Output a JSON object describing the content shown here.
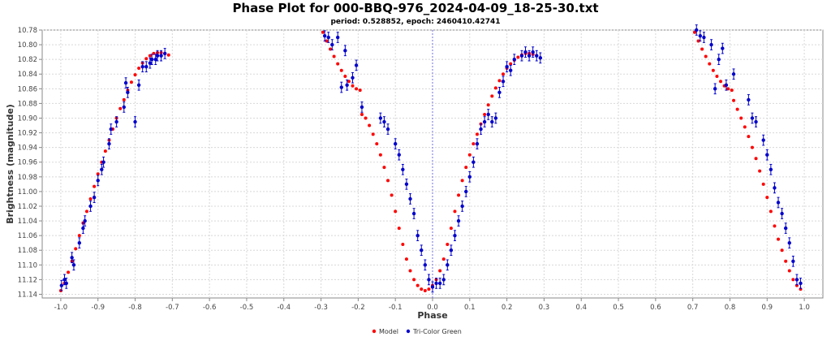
{
  "chart_data": {
    "type": "scatter",
    "title": "Phase Plot for 000-BBQ-976_2024-04-09_18-25-30.txt",
    "subtitle": "period: 0.528852, epoch: 2460410.42741",
    "xlabel": "Phase",
    "ylabel": "Brightness (magnitude)",
    "xlim": [
      -1.05,
      1.05
    ],
    "ylim": [
      10.78,
      11.145
    ],
    "y_inverted": true,
    "x_ticks": [
      "-1.0",
      "-0.9",
      "-0.8",
      "-0.7",
      "-0.6",
      "-0.5",
      "-0.4",
      "-0.3",
      "-0.2",
      "-0.1",
      "0.0",
      "0.1",
      "0.2",
      "0.3",
      "0.4",
      "0.5",
      "0.6",
      "0.7",
      "0.8",
      "0.9",
      "1.0"
    ],
    "y_ticks": [
      "10.78",
      "10.80",
      "10.82",
      "10.84",
      "10.86",
      "10.88",
      "10.90",
      "10.92",
      "10.94",
      "10.96",
      "10.98",
      "11.00",
      "11.02",
      "11.04",
      "11.06",
      "11.08",
      "11.10",
      "11.12",
      "11.14"
    ],
    "grid": true,
    "legend_position": "bottom-center",
    "series": [
      {
        "name": "Model",
        "color": "#ff0000",
        "x": [
          -1.0,
          -0.99,
          -0.98,
          -0.97,
          -0.96,
          -0.95,
          -0.94,
          -0.93,
          -0.92,
          -0.91,
          -0.9,
          -0.89,
          -0.88,
          -0.87,
          -0.86,
          -0.85,
          -0.84,
          -0.83,
          -0.82,
          -0.81,
          -0.8,
          -0.79,
          -0.78,
          -0.77,
          -0.76,
          -0.75,
          -0.74,
          -0.73,
          -0.72,
          -0.71,
          -0.295,
          -0.285,
          -0.275,
          -0.265,
          -0.255,
          -0.245,
          -0.235,
          -0.225,
          -0.215,
          -0.205,
          -0.195,
          -0.19,
          -0.18,
          -0.17,
          -0.16,
          -0.15,
          -0.14,
          -0.13,
          -0.12,
          -0.11,
          -0.1,
          -0.09,
          -0.08,
          -0.07,
          -0.06,
          -0.05,
          -0.04,
          -0.03,
          -0.02,
          -0.01,
          0.0,
          0.01,
          0.02,
          0.03,
          0.04,
          0.05,
          0.06,
          0.07,
          0.08,
          0.09,
          0.1,
          0.11,
          0.12,
          0.13,
          0.14,
          0.15,
          0.16,
          0.17,
          0.18,
          0.19,
          0.2,
          0.21,
          0.22,
          0.23,
          0.24,
          0.25,
          0.26,
          0.27,
          0.28,
          0.29,
          0.705,
          0.715,
          0.725,
          0.735,
          0.745,
          0.755,
          0.765,
          0.775,
          0.785,
          0.795,
          0.805,
          0.81,
          0.82,
          0.83,
          0.84,
          0.85,
          0.86,
          0.87,
          0.88,
          0.89,
          0.9,
          0.91,
          0.92,
          0.93,
          0.94,
          0.95,
          0.96,
          0.97,
          0.98,
          0.99
        ],
        "y": [
          11.135,
          11.125,
          11.11,
          11.095,
          11.078,
          11.06,
          11.043,
          11.027,
          11.01,
          10.993,
          10.976,
          10.96,
          10.945,
          10.93,
          10.915,
          10.9,
          10.887,
          10.875,
          10.862,
          10.851,
          10.841,
          10.832,
          10.825,
          10.819,
          10.815,
          10.812,
          10.811,
          10.811,
          10.812,
          10.814,
          10.783,
          10.795,
          10.806,
          10.816,
          10.826,
          10.835,
          10.843,
          10.85,
          10.856,
          10.86,
          10.862,
          10.895,
          10.9,
          10.91,
          10.922,
          10.935,
          10.95,
          10.967,
          10.985,
          11.005,
          11.027,
          11.05,
          11.072,
          11.092,
          11.108,
          11.12,
          11.128,
          11.133,
          11.135,
          11.133,
          11.128,
          11.12,
          11.108,
          11.092,
          11.072,
          11.05,
          11.027,
          11.005,
          10.985,
          10.967,
          10.95,
          10.935,
          10.922,
          10.908,
          10.895,
          10.882,
          10.87,
          10.859,
          10.849,
          10.84,
          10.832,
          10.826,
          10.821,
          10.817,
          10.814,
          10.812,
          10.812,
          10.813,
          10.815,
          10.818,
          10.783,
          10.795,
          10.806,
          10.816,
          10.826,
          10.835,
          10.843,
          10.85,
          10.856,
          10.86,
          10.862,
          10.876,
          10.888,
          10.9,
          10.912,
          10.925,
          10.94,
          10.955,
          10.972,
          10.99,
          11.008,
          11.027,
          11.047,
          11.065,
          11.08,
          11.095,
          11.108,
          11.12,
          11.128,
          11.133
        ]
      },
      {
        "name": "Tri-Color Green",
        "color": "#0000cc",
        "error": 0.007,
        "x": [
          -0.998,
          -0.99,
          -0.985,
          -0.97,
          -0.965,
          -0.95,
          -0.94,
          -0.935,
          -0.92,
          -0.91,
          -0.9,
          -0.89,
          -0.885,
          -0.87,
          -0.865,
          -0.85,
          -0.83,
          -0.825,
          -0.82,
          -0.8,
          -0.79,
          -0.78,
          -0.77,
          -0.76,
          -0.755,
          -0.745,
          -0.74,
          -0.73,
          -0.72,
          -0.29,
          -0.28,
          -0.27,
          -0.255,
          -0.245,
          -0.235,
          -0.23,
          -0.215,
          -0.205,
          -0.19,
          -0.14,
          -0.13,
          -0.12,
          -0.1,
          -0.09,
          -0.08,
          -0.07,
          -0.06,
          -0.05,
          -0.04,
          -0.03,
          -0.02,
          -0.01,
          0.0,
          0.01,
          0.02,
          0.03,
          0.04,
          0.05,
          0.06,
          0.07,
          0.08,
          0.09,
          0.1,
          0.11,
          0.12,
          0.13,
          0.14,
          0.15,
          0.16,
          0.17,
          0.18,
          0.19,
          0.2,
          0.21,
          0.22,
          0.24,
          0.25,
          0.26,
          0.27,
          0.28,
          0.29,
          0.71,
          0.72,
          0.73,
          0.75,
          0.76,
          0.77,
          0.78,
          0.79,
          0.81,
          0.85,
          0.86,
          0.87,
          0.89,
          0.9,
          0.91,
          0.92,
          0.93,
          0.94,
          0.95,
          0.96,
          0.97,
          0.98,
          0.99
        ],
        "y": [
          11.128,
          11.12,
          11.125,
          11.09,
          11.1,
          11.07,
          11.05,
          11.04,
          11.02,
          11.008,
          10.985,
          10.97,
          10.96,
          10.935,
          10.915,
          10.905,
          10.885,
          10.852,
          10.865,
          10.905,
          10.855,
          10.83,
          10.83,
          10.825,
          10.82,
          10.82,
          10.815,
          10.815,
          10.812,
          10.788,
          10.79,
          10.8,
          10.79,
          10.858,
          10.808,
          10.855,
          10.845,
          10.828,
          10.885,
          10.9,
          10.905,
          10.915,
          10.935,
          10.95,
          10.97,
          10.99,
          11.01,
          11.03,
          11.06,
          11.08,
          11.1,
          11.12,
          11.13,
          11.125,
          11.125,
          11.12,
          11.1,
          11.08,
          11.06,
          11.04,
          11.02,
          11.0,
          10.98,
          10.96,
          10.935,
          10.915,
          10.905,
          10.895,
          10.905,
          10.9,
          10.865,
          10.85,
          10.83,
          10.835,
          10.82,
          10.815,
          10.81,
          10.815,
          10.81,
          10.815,
          10.818,
          10.78,
          10.788,
          10.79,
          10.8,
          10.86,
          10.82,
          10.805,
          10.855,
          10.84,
          10.875,
          10.9,
          10.905,
          10.93,
          10.95,
          10.97,
          10.995,
          11.015,
          11.03,
          11.05,
          11.07,
          11.095,
          11.12,
          11.125
        ]
      }
    ]
  }
}
